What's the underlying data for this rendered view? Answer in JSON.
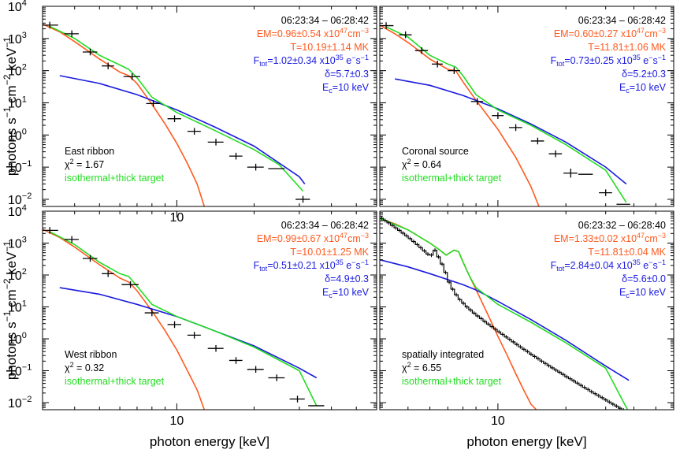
{
  "colors": {
    "frame": "#000000",
    "data": "#000000",
    "thermal": "#ff5a1f",
    "nonthermal": "#1a1adf",
    "total": "#22dd22",
    "em_text": "#ff5a1f",
    "nt_text": "#1a1adf",
    "fit_text": "#22dd22"
  },
  "chart_data": [
    {
      "type": "line",
      "panel": "top-left",
      "x_scale": "log",
      "y_scale": "log",
      "xlim": [
        3.0,
        60.0
      ],
      "ylim": [
        0.006,
        10000
      ],
      "y_ticks": [
        "10^4",
        "10^3",
        "10^2",
        "10^1",
        "10^0",
        "10^-1",
        "10^-2"
      ],
      "x_tick_label": "10",
      "ylabel": "photons s^-1 cm^-2 keV^-1",
      "xlabel": "",
      "annotations": {
        "time": "06:23:34 – 06:28:42",
        "em_prefix": "EM=0.96±0.54 x10",
        "em_exp": "47",
        "em_unit": "cm",
        "em_unit_exp": "−3",
        "temp": "T=10.19±1.14 MK",
        "ftot_prefix": "F",
        "ftot_sub": "tot",
        "ftot_value": "=1.02±0.34 x10",
        "ftot_exp": "35",
        "ftot_unit": " e",
        "ftot_unit_exp": "−",
        "ftot_unit_tail": "s",
        "ftot_unit_tail_exp": "−1",
        "delta": "δ=5.7±0.3",
        "ec_prefix": "E",
        "ec_sub": "c",
        "ec_value": "=10 keV",
        "source": "East ribbon",
        "chi_prefix": "χ",
        "chi_exp": "2",
        "chi_value": " = 1.67",
        "fit_label": "isothermal+thick target"
      },
      "data_points": [
        {
          "x": 3.2,
          "y": 2600,
          "xerr": 0.25,
          "yerr": 0.3
        },
        {
          "x": 3.9,
          "y": 1400,
          "xerr": 0.25,
          "yerr": 0.3
        },
        {
          "x": 4.6,
          "y": 380,
          "xerr": 0.3,
          "yerr": 0.3
        },
        {
          "x": 5.4,
          "y": 140,
          "xerr": 0.3,
          "yerr": 0.3
        },
        {
          "x": 6.7,
          "y": 65,
          "xerr": 0.5,
          "yerr": 0.3
        },
        {
          "x": 8.1,
          "y": 9.5,
          "xerr": 0.5,
          "yerr": 0.3
        },
        {
          "x": 9.8,
          "y": 3.2,
          "xerr": 0.6,
          "yerr": 0.3
        },
        {
          "x": 11.7,
          "y": 1.3,
          "xerr": 0.7,
          "yerr": 0.3
        },
        {
          "x": 14.2,
          "y": 0.6,
          "xerr": 1.0,
          "yerr": 0.3
        },
        {
          "x": 17.0,
          "y": 0.22,
          "xerr": 1.0,
          "yerr": 0.3
        },
        {
          "x": 20.3,
          "y": 0.1,
          "xerr": 1.5,
          "yerr": 0.3
        },
        {
          "x": 24.5,
          "y": 0.09,
          "xerr": 1.8,
          "yerr": 0.0
        },
        {
          "x": 31.0,
          "y": 0.01,
          "xerr": 2.0,
          "yerr": 0.3
        }
      ],
      "series": [
        {
          "role": "thermal",
          "x": [
            3.0,
            3.5,
            4.0,
            5.0,
            6.0,
            6.5,
            7.0,
            8.0,
            9.0,
            10.0,
            11.0,
            12.0,
            12.8
          ],
          "values": [
            2800,
            1600,
            800,
            230,
            90,
            70,
            40,
            9,
            2.2,
            0.55,
            0.13,
            0.03,
            0.006
          ]
        },
        {
          "role": "nonthermal",
          "x": [
            3.5,
            5.0,
            7.0,
            10.0,
            14.0,
            20.0,
            30.0,
            31.5
          ],
          "values": [
            70,
            40,
            18,
            6,
            1.8,
            0.45,
            0.05,
            0.03
          ]
        },
        {
          "role": "total",
          "x": [
            3.2,
            4.0,
            5.0,
            6.0,
            6.5,
            7.0,
            8.0,
            10.0,
            14.0,
            20.0,
            25.0,
            31.0
          ],
          "values": [
            2400,
            1000,
            300,
            150,
            110,
            60,
            15,
            5,
            1.4,
            0.35,
            0.12,
            0.018
          ]
        }
      ]
    },
    {
      "type": "line",
      "panel": "top-right",
      "x_scale": "log",
      "y_scale": "log",
      "xlim": [
        3.0,
        60.0
      ],
      "ylim": [
        0.006,
        10000
      ],
      "annotations": {
        "time": "06:23:34 – 06:28:42",
        "em_prefix": "EM=0.60±0.27 x10",
        "em_exp": "47",
        "em_unit": "cm",
        "em_unit_exp": "−3",
        "temp": "T=11.81±1.06 MK",
        "ftot_prefix": "F",
        "ftot_sub": "tot",
        "ftot_value": "=0.73±0.25 x10",
        "ftot_exp": "35",
        "ftot_unit": " e",
        "ftot_unit_exp": "−",
        "ftot_unit_tail": "s",
        "ftot_unit_tail_exp": "−1",
        "delta": "δ=5.2±0.3",
        "ec_prefix": "E",
        "ec_sub": "c",
        "ec_value": "=10 keV",
        "source": "Coronal source",
        "chi_prefix": "χ",
        "chi_exp": "2",
        "chi_value": " = 0.64",
        "fit_label": "isothermal+thick target"
      },
      "data_points": [
        {
          "x": 3.2,
          "y": 2500,
          "xerr": 0.25,
          "yerr": 0.3
        },
        {
          "x": 3.9,
          "y": 1300,
          "xerr": 0.25,
          "yerr": 0.3
        },
        {
          "x": 4.6,
          "y": 420,
          "xerr": 0.3,
          "yerr": 0.3
        },
        {
          "x": 5.4,
          "y": 160,
          "xerr": 0.3,
          "yerr": 0.3
        },
        {
          "x": 6.4,
          "y": 100,
          "xerr": 0.4,
          "yerr": 0.3
        },
        {
          "x": 8.1,
          "y": 11,
          "xerr": 0.5,
          "yerr": 0.3
        },
        {
          "x": 10.0,
          "y": 4.0,
          "xerr": 0.6,
          "yerr": 0.3
        },
        {
          "x": 12.0,
          "y": 1.7,
          "xerr": 0.8,
          "yerr": 0.3
        },
        {
          "x": 15.0,
          "y": 0.65,
          "xerr": 1.0,
          "yerr": 0.3
        },
        {
          "x": 18.0,
          "y": 0.26,
          "xerr": 1.2,
          "yerr": 0.3
        },
        {
          "x": 21.0,
          "y": 0.065,
          "xerr": 1.5,
          "yerr": 0.4
        },
        {
          "x": 24.5,
          "y": 0.06,
          "xerr": 1.8,
          "yerr": 0.0
        },
        {
          "x": 30.0,
          "y": 0.016,
          "xerr": 2.0,
          "yerr": 0.3
        },
        {
          "x": 36.0,
          "y": 0.007,
          "xerr": 2.5,
          "yerr": 0.0
        }
      ],
      "series": [
        {
          "role": "thermal",
          "x": [
            3.0,
            3.5,
            4.0,
            5.0,
            6.0,
            6.5,
            7.0,
            8.0,
            10.0,
            12.0,
            14.0,
            15.2
          ],
          "values": [
            2600,
            1400,
            750,
            230,
            110,
            100,
            45,
            12,
            1.5,
            0.2,
            0.025,
            0.006
          ]
        },
        {
          "role": "nonthermal",
          "x": [
            3.5,
            5.0,
            7.0,
            10.0,
            14.0,
            20.0,
            30.0,
            37.0
          ],
          "values": [
            55,
            35,
            17,
            6.5,
            2.2,
            0.6,
            0.1,
            0.03
          ]
        },
        {
          "role": "total",
          "x": [
            3.2,
            4.0,
            5.0,
            6.0,
            6.5,
            7.0,
            8.0,
            10.0,
            14.0,
            20.0,
            30.0,
            37.0
          ],
          "values": [
            2300,
            1100,
            300,
            160,
            130,
            70,
            18,
            6,
            2.0,
            0.5,
            0.08,
            0.008
          ]
        }
      ]
    },
    {
      "type": "line",
      "panel": "bottom-left",
      "x_scale": "log",
      "y_scale": "log",
      "xlim": [
        3.0,
        60.0
      ],
      "ylim": [
        0.006,
        10000
      ],
      "y_ticks": [
        "10^4",
        "10^3",
        "10^2",
        "10^1",
        "10^0",
        "10^-1",
        "10^-2"
      ],
      "x_tick_label": "10",
      "ylabel": "photons s^-1 cm^-2 keV^-1",
      "xlabel": "photon energy [keV]",
      "annotations": {
        "time": "06:23:34 – 06:28:42",
        "em_prefix": "EM=0.99±0.67 x10",
        "em_exp": "47",
        "em_unit": "cm",
        "em_unit_exp": "−3",
        "temp": "T=10.01±1.25 MK",
        "ftot_prefix": "F",
        "ftot_sub": "tot",
        "ftot_value": "=0.51±0.21 x10",
        "ftot_exp": "35",
        "ftot_unit": " e",
        "ftot_unit_exp": "−",
        "ftot_unit_tail": "s",
        "ftot_unit_tail_exp": "−1",
        "delta": "δ=4.9±0.3",
        "ec_prefix": "E",
        "ec_sub": "c",
        "ec_value": "=10 keV",
        "source": "West ribbon",
        "chi_prefix": "χ",
        "chi_exp": "2",
        "chi_value": " = 0.32",
        "fit_label": "isothermal+thick target"
      },
      "data_points": [
        {
          "x": 3.2,
          "y": 2500,
          "xerr": 0.25,
          "yerr": 0.3
        },
        {
          "x": 3.9,
          "y": 1300,
          "xerr": 0.25,
          "yerr": 0.3
        },
        {
          "x": 4.6,
          "y": 330,
          "xerr": 0.3,
          "yerr": 0.3
        },
        {
          "x": 5.4,
          "y": 110,
          "xerr": 0.3,
          "yerr": 0.3
        },
        {
          "x": 6.6,
          "y": 50,
          "xerr": 0.5,
          "yerr": 0.3
        },
        {
          "x": 8.0,
          "y": 6.5,
          "xerr": 0.5,
          "yerr": 0.3
        },
        {
          "x": 9.8,
          "y": 2.8,
          "xerr": 0.6,
          "yerr": 0.3
        },
        {
          "x": 11.7,
          "y": 1.3,
          "xerr": 0.7,
          "yerr": 0.3
        },
        {
          "x": 14.2,
          "y": 0.5,
          "xerr": 1.0,
          "yerr": 0.3
        },
        {
          "x": 17.0,
          "y": 0.21,
          "xerr": 1.0,
          "yerr": 0.3
        },
        {
          "x": 20.3,
          "y": 0.11,
          "xerr": 1.5,
          "yerr": 0.3
        },
        {
          "x": 24.5,
          "y": 0.06,
          "xerr": 1.8,
          "yerr": 0.3
        },
        {
          "x": 29.5,
          "y": 0.013,
          "xerr": 2.0,
          "yerr": 0.3
        },
        {
          "x": 35.0,
          "y": 0.008,
          "xerr": 2.5,
          "yerr": 0.0
        }
      ],
      "series": [
        {
          "role": "thermal",
          "x": [
            3.0,
            3.5,
            4.0,
            5.0,
            6.0,
            6.5,
            7.0,
            8.0,
            9.0,
            10.0,
            11.0,
            12.0,
            12.8
          ],
          "values": [
            2700,
            1500,
            750,
            210,
            80,
            60,
            32,
            7.5,
            1.8,
            0.45,
            0.1,
            0.025,
            0.006
          ]
        },
        {
          "role": "nonthermal",
          "x": [
            3.5,
            5.0,
            7.0,
            10.0,
            14.0,
            20.0,
            30.0,
            35.0
          ],
          "values": [
            40,
            25,
            12,
            5.0,
            1.8,
            0.6,
            0.12,
            0.06
          ]
        },
        {
          "role": "total",
          "x": [
            3.2,
            4.0,
            5.0,
            6.0,
            6.5,
            7.0,
            8.0,
            10.0,
            14.0,
            20.0,
            30.0,
            35.0
          ],
          "values": [
            2300,
            900,
            250,
            110,
            90,
            45,
            12,
            5,
            1.8,
            0.55,
            0.1,
            0.008
          ]
        }
      ]
    },
    {
      "type": "line",
      "panel": "bottom-right",
      "x_scale": "log",
      "y_scale": "log",
      "xlim": [
        3.0,
        60.0
      ],
      "ylim": [
        0.006,
        10000
      ],
      "x_tick_label": "10",
      "xlabel": "photon energy [keV]",
      "annotations": {
        "time": "06:23:32 – 06:28:40",
        "em_prefix": "EM=1.33±0.02 x10",
        "em_exp": "47",
        "em_unit": "cm",
        "em_unit_exp": "−3",
        "temp": "T=11.81±0.04 MK",
        "ftot_prefix": "F",
        "ftot_sub": "tot",
        "ftot_value": "=2.84±0.04 x10",
        "ftot_exp": "35",
        "ftot_unit": " e",
        "ftot_unit_exp": "−",
        "ftot_unit_tail": "s",
        "ftot_unit_tail_exp": "−1",
        "delta": "δ=5.6±0.0",
        "ec_prefix": "E",
        "ec_sub": "c",
        "ec_value": "=10 keV",
        "source": "spatially integrated",
        "chi_prefix": "χ",
        "chi_exp": "2",
        "chi_value": " = 6.55",
        "fit_label": "isothermal+thick target"
      },
      "dense_spectrum": {
        "x_start": 3.0,
        "x_end": 38.0,
        "bins": 70,
        "values": [
          6000,
          5100,
          4300,
          3600,
          3000,
          2500,
          2050,
          1700,
          1380,
          1120,
          900,
          720,
          570,
          450,
          420,
          600,
          370,
          220,
          120,
          60,
          36,
          24,
          17,
          13,
          10,
          8.0,
          6.4,
          5.2,
          4.3,
          3.5,
          2.9,
          2.4,
          2.0,
          1.65,
          1.38,
          1.15,
          0.96,
          0.8,
          0.67,
          0.56,
          0.47,
          0.4,
          0.33,
          0.28,
          0.24,
          0.2,
          0.17,
          0.145,
          0.123,
          0.105,
          0.09,
          0.077,
          0.065,
          0.056,
          0.048,
          0.041,
          0.035,
          0.03,
          0.026,
          0.022,
          0.019,
          0.0165,
          0.0142,
          0.0122,
          0.0105,
          0.009,
          0.0078,
          0.0067,
          0.0058,
          0.005
        ]
      },
      "series": [
        {
          "role": "thermal",
          "x": [
            3.0,
            3.5,
            4.0,
            5.0,
            5.5,
            5.9,
            6.4,
            6.7,
            7.0,
            7.5,
            8.0,
            9.0,
            10.0,
            11.0,
            12.0,
            13.0,
            14.0,
            14.8
          ],
          "values": [
            6000,
            4000,
            2600,
            1000,
            620,
            420,
            600,
            540,
            260,
            90,
            35,
            6,
            1.2,
            0.3,
            0.08,
            0.025,
            0.009,
            0.006
          ]
        },
        {
          "role": "nonthermal",
          "x": [
            3.0,
            4.0,
            5.0,
            7.0,
            8.0,
            10.0,
            14.0,
            20.0,
            30.0,
            38.0
          ],
          "values": [
            300,
            180,
            110,
            50,
            34,
            15,
            4.0,
            0.9,
            0.14,
            0.05
          ]
        },
        {
          "role": "total",
          "x": [
            3.0,
            4.0,
            5.0,
            5.5,
            5.9,
            6.4,
            6.7,
            7.0,
            7.5,
            8.0,
            10.0,
            14.0,
            20.0,
            30.0,
            38.0
          ],
          "values": [
            6000,
            2600,
            1000,
            620,
            420,
            600,
            540,
            260,
            90,
            40,
            12,
            3.3,
            0.75,
            0.12,
            0.005
          ]
        }
      ]
    }
  ]
}
